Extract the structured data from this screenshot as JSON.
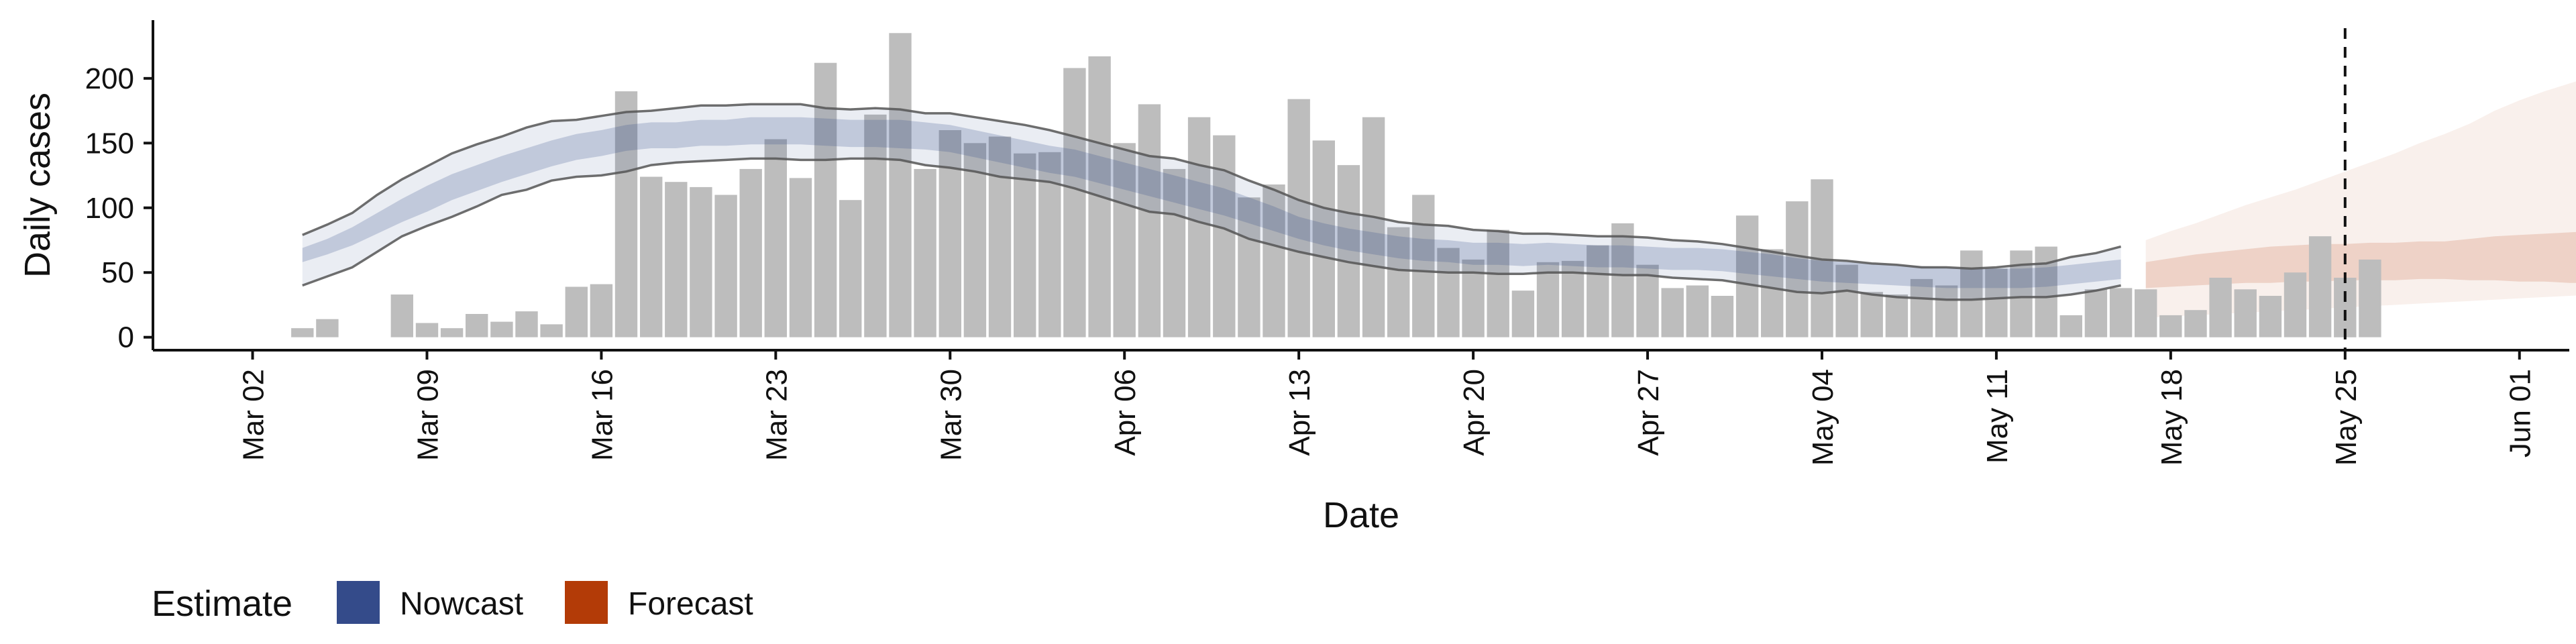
{
  "chart_data": {
    "type": "bar",
    "title": "",
    "xlabel": "Date",
    "ylabel": "Daily cases",
    "x_start_date": "2020-03-04",
    "ylim": [
      -10,
      245
    ],
    "yticks": [
      0,
      50,
      100,
      150,
      200
    ],
    "xlim": [
      "2020-02-27",
      "2020-06-03"
    ],
    "xticks": [
      "Mar 02",
      "Mar 09",
      "Mar 16",
      "Mar 23",
      "Mar 30",
      "Apr 06",
      "Apr 13",
      "Apr 20",
      "Apr 27",
      "May 04",
      "May 11",
      "May 18",
      "May 25",
      "Jun 01"
    ],
    "xtick_dates": [
      "2020-03-02",
      "2020-03-09",
      "2020-03-16",
      "2020-03-23",
      "2020-03-30",
      "2020-04-06",
      "2020-04-13",
      "2020-04-20",
      "2020-04-27",
      "2020-05-04",
      "2020-05-11",
      "2020-05-18",
      "2020-05-25",
      "2020-06-01"
    ],
    "reference_line_date": "2020-05-25",
    "grid": false,
    "legend": {
      "title": "Estimate",
      "position": "bottom-left",
      "items": [
        {
          "label": "Nowcast",
          "color": "#344b8a"
        },
        {
          "label": "Forecast",
          "color": "#b33b07"
        }
      ]
    },
    "bar_color": "#bdbdbd",
    "bars": [
      7,
      14,
      0,
      0,
      33,
      11,
      7,
      18,
      12,
      20,
      10,
      39,
      41,
      190,
      124,
      120,
      116,
      110,
      130,
      153,
      123,
      212,
      106,
      172,
      235,
      130,
      160,
      150,
      155,
      142,
      143,
      208,
      217,
      150,
      180,
      130,
      170,
      156,
      108,
      118,
      184,
      152,
      133,
      170,
      85,
      110,
      69,
      60,
      83,
      36,
      58,
      59,
      71,
      88,
      56,
      38,
      40,
      32,
      94,
      68,
      105,
      122,
      56,
      35,
      33,
      45,
      40,
      67,
      53,
      67,
      70,
      17,
      37,
      38,
      37,
      17,
      21,
      46,
      37,
      32,
      50,
      78,
      46,
      60
    ],
    "nowcast": {
      "color": "#344b8a",
      "start_index": 0,
      "median": [
        63,
        70,
        78,
        88,
        98,
        107,
        116,
        123,
        130,
        136,
        142,
        147,
        150,
        154,
        156,
        156,
        158,
        158,
        160,
        160,
        160,
        159,
        158,
        158,
        158,
        156,
        154,
        150,
        146,
        142,
        138,
        135,
        130,
        125,
        120,
        115,
        110,
        105,
        98,
        92,
        85,
        80,
        76,
        73,
        70,
        68,
        67,
        65,
        65,
        64,
        65,
        64,
        63,
        63,
        62,
        61,
        61,
        60,
        58,
        56,
        53,
        51,
        50,
        49,
        48,
        47,
        46,
        45,
        45,
        45,
        46,
        48,
        50,
        52
      ],
      "inner": {
        "lower": [
          58,
          64,
          71,
          80,
          89,
          97,
          106,
          113,
          120,
          126,
          132,
          137,
          140,
          144,
          146,
          146,
          148,
          148,
          149,
          149,
          149,
          148,
          147,
          147,
          146,
          145,
          143,
          139,
          135,
          131,
          127,
          124,
          119,
          114,
          109,
          104,
          99,
          94,
          88,
          82,
          76,
          71,
          67,
          64,
          61,
          59,
          58,
          56,
          56,
          55,
          56,
          55,
          54,
          54,
          53,
          52,
          52,
          51,
          49,
          47,
          45,
          43,
          42,
          41,
          40,
          39,
          38,
          38,
          38,
          38,
          39,
          41,
          43,
          45
        ],
        "upper": [
          69,
          76,
          85,
          96,
          107,
          117,
          126,
          133,
          140,
          146,
          152,
          157,
          160,
          164,
          166,
          166,
          168,
          168,
          170,
          170,
          170,
          169,
          168,
          168,
          168,
          166,
          164,
          160,
          156,
          152,
          148,
          145,
          140,
          135,
          130,
          125,
          120,
          115,
          108,
          101,
          93,
          88,
          84,
          81,
          78,
          76,
          75,
          73,
          73,
          72,
          73,
          72,
          71,
          71,
          70,
          69,
          69,
          68,
          66,
          64,
          61,
          59,
          58,
          57,
          56,
          55,
          54,
          53,
          53,
          53,
          54,
          56,
          58,
          60
        ]
      },
      "outer": {
        "lower": [
          40,
          47,
          54,
          66,
          78,
          86,
          93,
          101,
          110,
          114,
          121,
          124,
          125,
          128,
          133,
          135,
          136,
          137,
          138,
          138,
          137,
          137,
          138,
          138,
          137,
          133,
          131,
          128,
          124,
          122,
          120,
          115,
          109,
          103,
          97,
          95,
          89,
          84,
          76,
          71,
          66,
          62,
          58,
          55,
          52,
          51,
          50,
          50,
          49,
          49,
          50,
          50,
          49,
          48,
          48,
          46,
          45,
          44,
          41,
          38,
          35,
          34,
          36,
          33,
          31,
          30,
          29,
          29,
          30,
          31,
          31,
          33,
          36,
          40
        ],
        "upper": [
          79,
          87,
          96,
          110,
          122,
          132,
          142,
          149,
          155,
          162,
          167,
          168,
          171,
          174,
          175,
          177,
          179,
          179,
          180,
          180,
          180,
          177,
          176,
          177,
          176,
          173,
          173,
          170,
          167,
          164,
          160,
          155,
          150,
          145,
          140,
          138,
          133,
          129,
          121,
          114,
          106,
          100,
          96,
          93,
          89,
          87,
          86,
          83,
          82,
          80,
          80,
          79,
          78,
          78,
          77,
          75,
          74,
          72,
          69,
          66,
          63,
          60,
          59,
          57,
          56,
          54,
          54,
          53,
          54,
          56,
          57,
          62,
          65,
          70
        ]
      }
    },
    "forecast": {
      "color": "#b33b07",
      "start_index": 74,
      "median": [
        48,
        50,
        52,
        54,
        55,
        56,
        56,
        57,
        58,
        59,
        59,
        60,
        60,
        61,
        62,
        62,
        63,
        64,
        65
      ],
      "inner": {
        "lower": [
          38,
          39,
          40,
          41,
          42,
          42,
          43,
          43,
          44,
          44,
          44,
          45,
          45,
          44,
          44,
          43,
          43,
          42,
          42
        ],
        "upper": [
          58,
          61,
          64,
          66,
          68,
          70,
          71,
          72,
          72,
          73,
          73,
          74,
          74,
          76,
          78,
          79,
          80,
          81,
          82
        ]
      },
      "outer": {
        "lower": [
          15,
          16,
          17,
          18,
          19,
          20,
          21,
          22,
          23,
          24,
          25,
          26,
          27,
          28,
          29,
          30,
          31,
          32,
          33
        ],
        "upper": [
          75,
          82,
          88,
          95,
          102,
          108,
          114,
          121,
          128,
          135,
          142,
          150,
          157,
          165,
          175,
          183,
          190,
          196,
          202
        ]
      }
    }
  }
}
